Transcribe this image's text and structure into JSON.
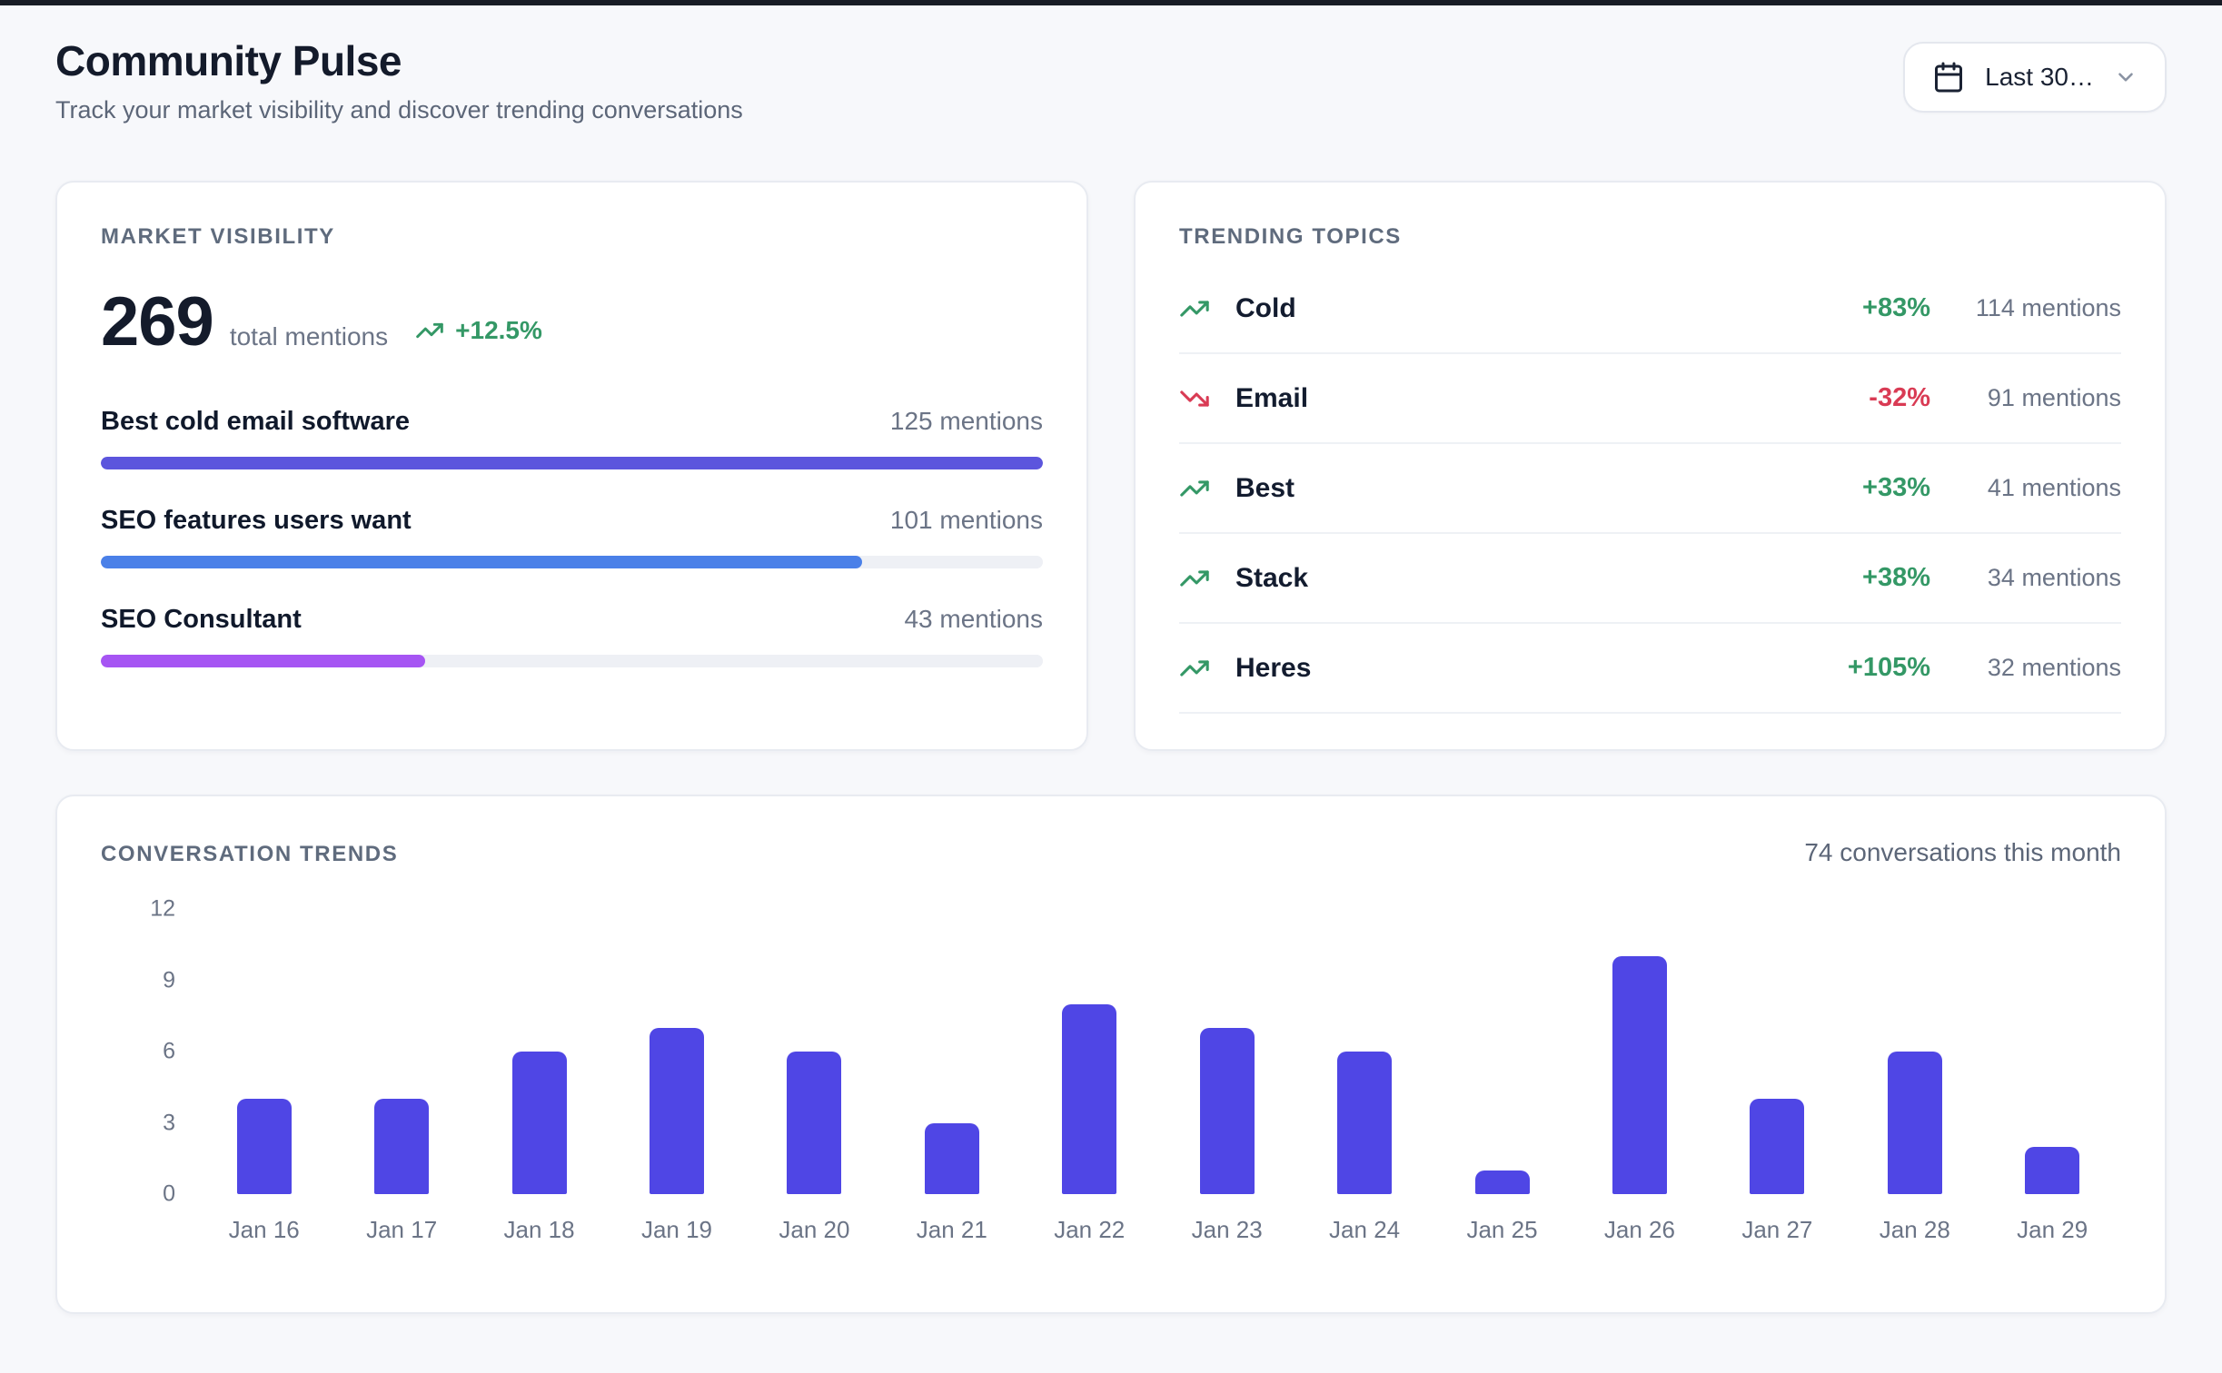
{
  "page": {
    "title": "Community Pulse",
    "subtitle": "Track your market visibility and discover trending conversations"
  },
  "date_filter": {
    "label": "Last 30…"
  },
  "market_visibility": {
    "section_title": "MARKET VISIBILITY",
    "total": "269",
    "total_label": "total mentions",
    "trend": "+12.5%",
    "max_mentions": 125,
    "items": [
      {
        "label": "Best cold email software",
        "mentions": "125 mentions",
        "value": 125,
        "color": "#5c55dd"
      },
      {
        "label": "SEO features users want",
        "mentions": "101 mentions",
        "value": 101,
        "color": "#4a80e8"
      },
      {
        "label": "SEO Consultant",
        "mentions": "43 mentions",
        "value": 43,
        "color": "#a655f3"
      }
    ]
  },
  "trending_topics": {
    "section_title": "TRENDING TOPICS",
    "items": [
      {
        "name": "Cold",
        "change": "+83%",
        "mentions": "114 mentions",
        "direction": "up"
      },
      {
        "name": "Email",
        "change": "-32%",
        "mentions": "91 mentions",
        "direction": "down"
      },
      {
        "name": "Best",
        "change": "+33%",
        "mentions": "41 mentions",
        "direction": "up"
      },
      {
        "name": "Stack",
        "change": "+38%",
        "mentions": "34 mentions",
        "direction": "up"
      },
      {
        "name": "Heres",
        "change": "+105%",
        "mentions": "32 mentions",
        "direction": "up"
      }
    ]
  },
  "conversation_trends": {
    "section_title": "CONVERSATION TRENDS",
    "summary": "74 conversations this month"
  },
  "chart_data": {
    "type": "bar",
    "title": "Conversation Trends",
    "categories": [
      "Jan 16",
      "Jan 17",
      "Jan 18",
      "Jan 19",
      "Jan 20",
      "Jan 21",
      "Jan 22",
      "Jan 23",
      "Jan 24",
      "Jan 25",
      "Jan 26",
      "Jan 27",
      "Jan 28",
      "Jan 29"
    ],
    "values": [
      4,
      4,
      6,
      7,
      6,
      3,
      8,
      7,
      6,
      1,
      10,
      4,
      6,
      2
    ],
    "xlabel": "",
    "ylabel": "",
    "ylim": [
      0,
      12
    ],
    "yticks": [
      0,
      3,
      6,
      9,
      12
    ],
    "bar_color": "#4f46e5",
    "grid": false,
    "legend": false
  }
}
